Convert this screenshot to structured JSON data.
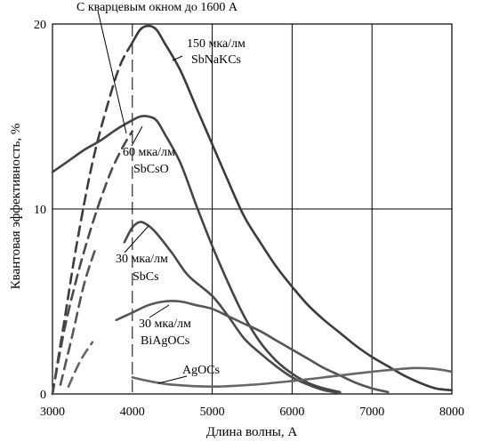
{
  "chart_data": {
    "type": "line",
    "title": "",
    "xlabel": "Длина волны, А",
    "ylabel": "Квантовая эффективность, %",
    "xlim": [
      3000,
      8000
    ],
    "ylim": [
      0,
      20
    ],
    "x_ticks": [
      "3000",
      "4000",
      "5000",
      "6000",
      "7000",
      "8000"
    ],
    "y_ticks": [
      "0",
      "10",
      "20"
    ],
    "grid": true,
    "quartz_note": "С кварцевым окном до 1600 А",
    "quartz_marker_x": 4000,
    "series": [
      {
        "name": "150 мка/лм SbNaKCs",
        "label_line1": "150 мка/лм",
        "label_line2": "SbNaKCs",
        "segments": [
          {
            "style": "dashed",
            "points": [
              [
                3000,
                0
              ],
              [
                3150,
                4
              ],
              [
                3300,
                8
              ],
              [
                3500,
                12.5
              ],
              [
                3700,
                15.8
              ],
              [
                3850,
                17.8
              ],
              [
                4000,
                19
              ]
            ]
          },
          {
            "style": "solid",
            "points": [
              [
                4000,
                19
              ],
              [
                4100,
                19.7
              ],
              [
                4200,
                19.9
              ],
              [
                4300,
                19.7
              ],
              [
                4400,
                19
              ],
              [
                4600,
                17.5
              ],
              [
                4800,
                15.5
              ],
              [
                5000,
                13.5
              ],
              [
                5200,
                11.5
              ],
              [
                5400,
                9.6
              ],
              [
                5600,
                8.2
              ],
              [
                5800,
                6.9
              ],
              [
                6000,
                5.8
              ],
              [
                6200,
                4.8
              ],
              [
                6400,
                4
              ],
              [
                6600,
                3.3
              ],
              [
                6800,
                2.6
              ],
              [
                7000,
                2
              ],
              [
                7200,
                1.5
              ],
              [
                7400,
                1
              ],
              [
                7600,
                0.6
              ],
              [
                7800,
                0.3
              ],
              [
                8000,
                0.2
              ]
            ]
          }
        ]
      },
      {
        "name": "60 мка/лм SbCsO",
        "label_line1": "60 мка/лм",
        "label_line2": "SbCsO",
        "segments": [
          {
            "style": "solid",
            "points": [
              [
                3000,
                12
              ],
              [
                3200,
                12.6
              ],
              [
                3400,
                13.2
              ],
              [
                3600,
                13.7
              ],
              [
                3800,
                14.3
              ],
              [
                4000,
                14.8
              ],
              [
                4100,
                15
              ],
              [
                4200,
                15
              ],
              [
                4300,
                14.8
              ],
              [
                4400,
                14.1
              ],
              [
                4600,
                12.5
              ],
              [
                4800,
                10.2
              ],
              [
                5000,
                8
              ],
              [
                5200,
                6
              ],
              [
                5400,
                4.2
              ],
              [
                5600,
                2.8
              ],
              [
                5800,
                1.8
              ],
              [
                6000,
                1.1
              ],
              [
                6200,
                0.6
              ],
              [
                6400,
                0.3
              ],
              [
                6600,
                0.1
              ]
            ]
          }
        ]
      },
      {
        "name": "30 мка/лм SbCs",
        "label_line1": "30 мка/лм",
        "label_line2": "SbCs",
        "segments": [
          {
            "style": "dashed",
            "points": [
              [
                3000,
                0
              ],
              [
                3150,
                3.5
              ],
              [
                3300,
                6.2
              ],
              [
                3450,
                8.5
              ],
              [
                3600,
                10.5
              ],
              [
                3750,
                12.2
              ],
              [
                3900,
                13.5
              ],
              [
                4000,
                14.2
              ]
            ]
          },
          {
            "style": "solid",
            "points": [
              [
                3900,
                8.2
              ],
              [
                4000,
                9
              ],
              [
                4100,
                9.3
              ],
              [
                4200,
                9.1
              ],
              [
                4300,
                8.7
              ],
              [
                4500,
                7.6
              ],
              [
                4700,
                6.4
              ],
              [
                5000,
                5.3
              ],
              [
                5200,
                4.2
              ],
              [
                5400,
                3
              ],
              [
                5600,
                2.2
              ],
              [
                5800,
                1.5
              ],
              [
                6000,
                0.9
              ],
              [
                6200,
                0.5
              ],
              [
                6400,
                0.2
              ],
              [
                6600,
                0.05
              ]
            ]
          }
        ]
      },
      {
        "name": "30 мка/лм BiAgOCs",
        "label_line1": "30 мка/лм",
        "label_line2": "BiAgOCs",
        "segments": [
          {
            "style": "dashed",
            "points": [
              [
                3100,
                0.5
              ],
              [
                3250,
                3.2
              ],
              [
                3400,
                6
              ],
              [
                3550,
                8
              ]
            ]
          },
          {
            "style": "solid",
            "points": [
              [
                3800,
                4
              ],
              [
                4000,
                4.4
              ],
              [
                4200,
                4.8
              ],
              [
                4400,
                5
              ],
              [
                4600,
                5
              ],
              [
                4800,
                4.8
              ],
              [
                5000,
                4.6
              ],
              [
                5200,
                4.2
              ],
              [
                5400,
                3.8
              ],
              [
                5600,
                3.4
              ],
              [
                5800,
                2.9
              ],
              [
                6000,
                2.4
              ],
              [
                6200,
                1.9
              ],
              [
                6400,
                1.4
              ],
              [
                6600,
                1
              ],
              [
                6800,
                0.6
              ],
              [
                7000,
                0.3
              ],
              [
                7200,
                0.1
              ]
            ]
          }
        ]
      },
      {
        "name": "AgOCs",
        "label_line1": "AgOCs",
        "label_line2": "",
        "segments": [
          {
            "style": "dashed",
            "points": [
              [
                3200,
                0.4
              ],
              [
                3350,
                1.8
              ],
              [
                3500,
                2.8
              ]
            ]
          },
          {
            "style": "solid",
            "points": [
              [
                4000,
                0.9
              ],
              [
                4200,
                0.7
              ],
              [
                4500,
                0.5
              ],
              [
                5000,
                0.4
              ],
              [
                5500,
                0.5
              ],
              [
                6000,
                0.7
              ],
              [
                6500,
                0.95
              ],
              [
                7000,
                1.2
              ],
              [
                7500,
                1.4
              ],
              [
                7800,
                1.35
              ],
              [
                8000,
                1.2
              ]
            ]
          }
        ]
      }
    ]
  }
}
